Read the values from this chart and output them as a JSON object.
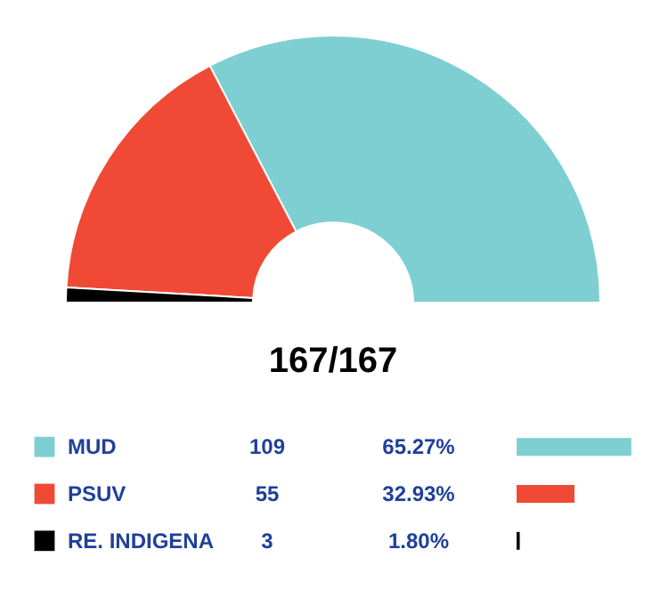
{
  "chart_data": {
    "type": "donut",
    "categories": [
      "MUD",
      "PSUV",
      "RE. INDIGENA"
    ],
    "values": [
      109,
      55,
      3
    ],
    "colors": [
      "#7ecfd2",
      "#f04a37",
      "#000000"
    ],
    "data_labels": true,
    "legend": "bottom",
    "annotations": [
      "167/167",
      "65.27%",
      "32.93%",
      "1.80%"
    ]
  }
}
